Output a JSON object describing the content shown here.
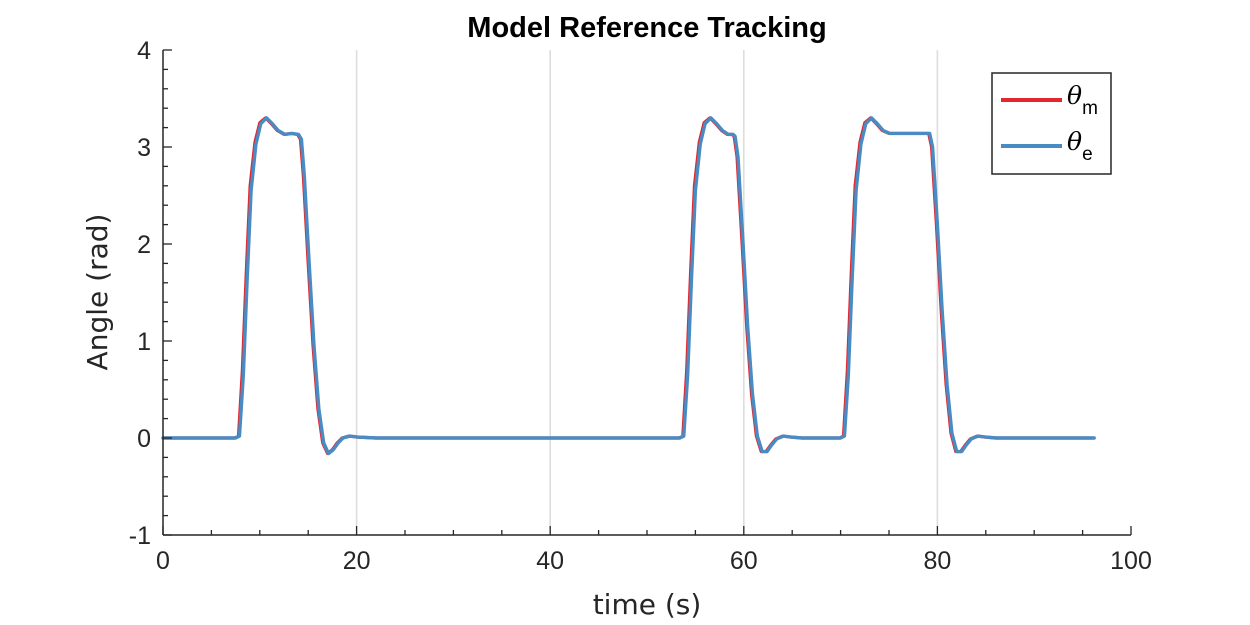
{
  "chart_data": {
    "type": "line",
    "title": "Model Reference Tracking",
    "xlabel": "time (s)",
    "ylabel": "Angle (rad)",
    "xlim": [
      0,
      100
    ],
    "ylim": [
      -1,
      4
    ],
    "xticks": [
      0,
      20,
      40,
      60,
      80,
      100
    ],
    "xtick_labels": [
      "0",
      "20",
      "40",
      "60",
      "80",
      "100"
    ],
    "yticks": [
      -1,
      0,
      1,
      2,
      3,
      4
    ],
    "ytick_labels": [
      "-1",
      "0",
      "1",
      "2",
      "3",
      "4"
    ],
    "grid": "x",
    "legend_position": "top-right",
    "series": [
      {
        "name": "θm",
        "symbol": "θ",
        "subscript": "m",
        "color": "#e0282e",
        "x": [
          0,
          7.4,
          7.8,
          8.2,
          8.6,
          9.0,
          9.5,
          10.0,
          10.6,
          11.2,
          11.8,
          12.5,
          13.2,
          13.9,
          14.2,
          14.5,
          15.0,
          15.5,
          16.0,
          16.5,
          17.0,
          17.5,
          18.0,
          18.5,
          19.2,
          20.0,
          22.0,
          53.3,
          53.7,
          54.1,
          54.5,
          54.9,
          55.4,
          55.9,
          56.5,
          57.1,
          57.7,
          58.3,
          58.8,
          59.0,
          59.3,
          59.8,
          60.3,
          60.8,
          61.3,
          61.8,
          62.3,
          62.8,
          63.3,
          64.0,
          64.8,
          66.0,
          69.9,
          70.3,
          70.7,
          71.1,
          71.5,
          72.0,
          72.5,
          73.1,
          73.7,
          74.3,
          75.0,
          75.8,
          76.8,
          78.0,
          79.1,
          79.4,
          79.9,
          80.4,
          80.9,
          81.4,
          81.9,
          82.4,
          82.9,
          83.4,
          84.1,
          84.9,
          86.0,
          96.1
        ],
        "y": [
          0,
          0,
          0.02,
          0.7,
          1.7,
          2.6,
          3.05,
          3.25,
          3.3,
          3.24,
          3.17,
          3.13,
          3.14,
          3.13,
          3.08,
          2.7,
          1.8,
          0.95,
          0.3,
          -0.05,
          -0.16,
          -0.12,
          -0.05,
          0.0,
          0.02,
          0.01,
          0,
          0,
          0.02,
          0.7,
          1.7,
          2.6,
          3.05,
          3.25,
          3.3,
          3.24,
          3.17,
          3.13,
          3.13,
          3.11,
          2.9,
          2.05,
          1.15,
          0.45,
          0.02,
          -0.14,
          -0.14,
          -0.07,
          -0.01,
          0.02,
          0.01,
          0,
          0,
          0.02,
          0.7,
          1.7,
          2.6,
          3.05,
          3.25,
          3.3,
          3.24,
          3.17,
          3.14,
          3.14,
          3.14,
          3.14,
          3.14,
          3.0,
          2.2,
          1.3,
          0.55,
          0.05,
          -0.14,
          -0.14,
          -0.07,
          -0.01,
          0.02,
          0.01,
          0,
          0
        ]
      },
      {
        "name": "θe",
        "symbol": "θ",
        "subscript": "e",
        "color": "#4a8bc4",
        "x": [
          0,
          7.5,
          7.9,
          8.3,
          8.7,
          9.1,
          9.6,
          10.1,
          10.7,
          11.3,
          11.9,
          12.6,
          13.3,
          14.0,
          14.3,
          14.6,
          15.1,
          15.6,
          16.1,
          16.6,
          17.1,
          17.6,
          18.1,
          18.6,
          19.3,
          20.1,
          22.0,
          53.4,
          53.8,
          54.2,
          54.6,
          55.0,
          55.5,
          56.0,
          56.6,
          57.2,
          57.8,
          58.4,
          58.9,
          59.1,
          59.4,
          59.9,
          60.4,
          60.9,
          61.4,
          61.9,
          62.4,
          62.9,
          63.4,
          64.1,
          64.9,
          66.0,
          70.0,
          70.4,
          70.8,
          71.2,
          71.6,
          72.1,
          72.6,
          73.2,
          73.8,
          74.4,
          75.1,
          75.9,
          76.9,
          78.1,
          79.2,
          79.5,
          80.0,
          80.5,
          81.0,
          81.5,
          82.0,
          82.5,
          83.0,
          83.5,
          84.2,
          85.0,
          86.1,
          96.2
        ],
        "y": [
          0,
          0,
          0.02,
          0.65,
          1.65,
          2.55,
          3.03,
          3.24,
          3.3,
          3.24,
          3.17,
          3.13,
          3.14,
          3.13,
          3.08,
          2.7,
          1.8,
          0.95,
          0.3,
          -0.05,
          -0.16,
          -0.12,
          -0.05,
          0.0,
          0.02,
          0.01,
          0,
          0,
          0.02,
          0.65,
          1.65,
          2.55,
          3.03,
          3.24,
          3.3,
          3.24,
          3.17,
          3.13,
          3.13,
          3.11,
          2.9,
          2.05,
          1.15,
          0.45,
          0.02,
          -0.14,
          -0.14,
          -0.07,
          -0.01,
          0.02,
          0.01,
          0,
          0,
          0.02,
          0.65,
          1.65,
          2.55,
          3.03,
          3.24,
          3.3,
          3.24,
          3.17,
          3.14,
          3.14,
          3.14,
          3.14,
          3.14,
          3.0,
          2.2,
          1.3,
          0.55,
          0.05,
          -0.14,
          -0.14,
          -0.07,
          -0.01,
          0.02,
          0.01,
          0,
          0
        ]
      }
    ]
  }
}
